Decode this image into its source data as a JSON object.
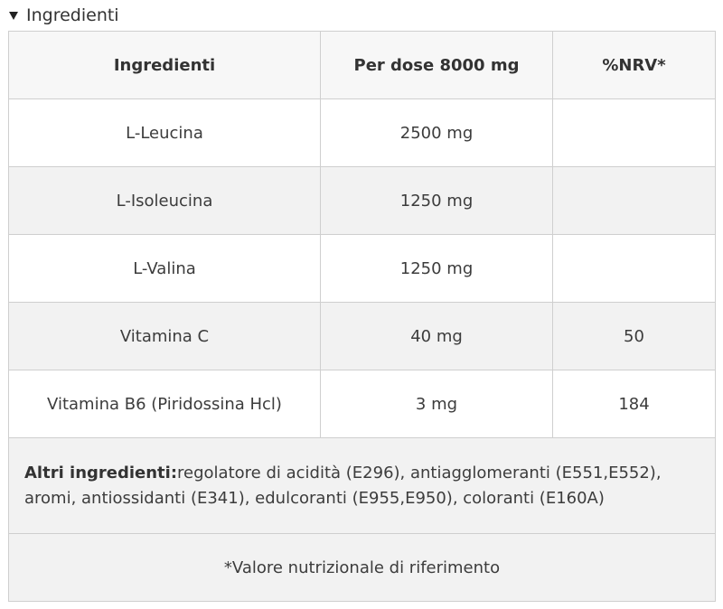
{
  "section": {
    "title": "Ingredienti"
  },
  "table": {
    "headers": [
      "Ingredienti",
      "Per dose 8000 mg",
      "%NRV*"
    ],
    "rows": [
      {
        "name": "L-Leucina",
        "dose": "2500 mg",
        "nrv": ""
      },
      {
        "name": "L-Isoleucina",
        "dose": "1250 mg",
        "nrv": ""
      },
      {
        "name": "L-Valina",
        "dose": "1250 mg",
        "nrv": ""
      },
      {
        "name": "Vitamina C",
        "dose": "40 mg",
        "nrv": "50"
      },
      {
        "name": "Vitamina B6 (Piridossina Hcl)",
        "dose": "3 mg",
        "nrv": "184"
      }
    ],
    "other_label": "Altri ingredienti:",
    "other_text": "regolatore di acidità (E296), antiagglomeranti (E551,E552), aromi, antiossidanti (E341), edulcoranti (E955,E950), coloranti (E160A)",
    "footnote": "*Valore nutrizionale di riferimento"
  }
}
